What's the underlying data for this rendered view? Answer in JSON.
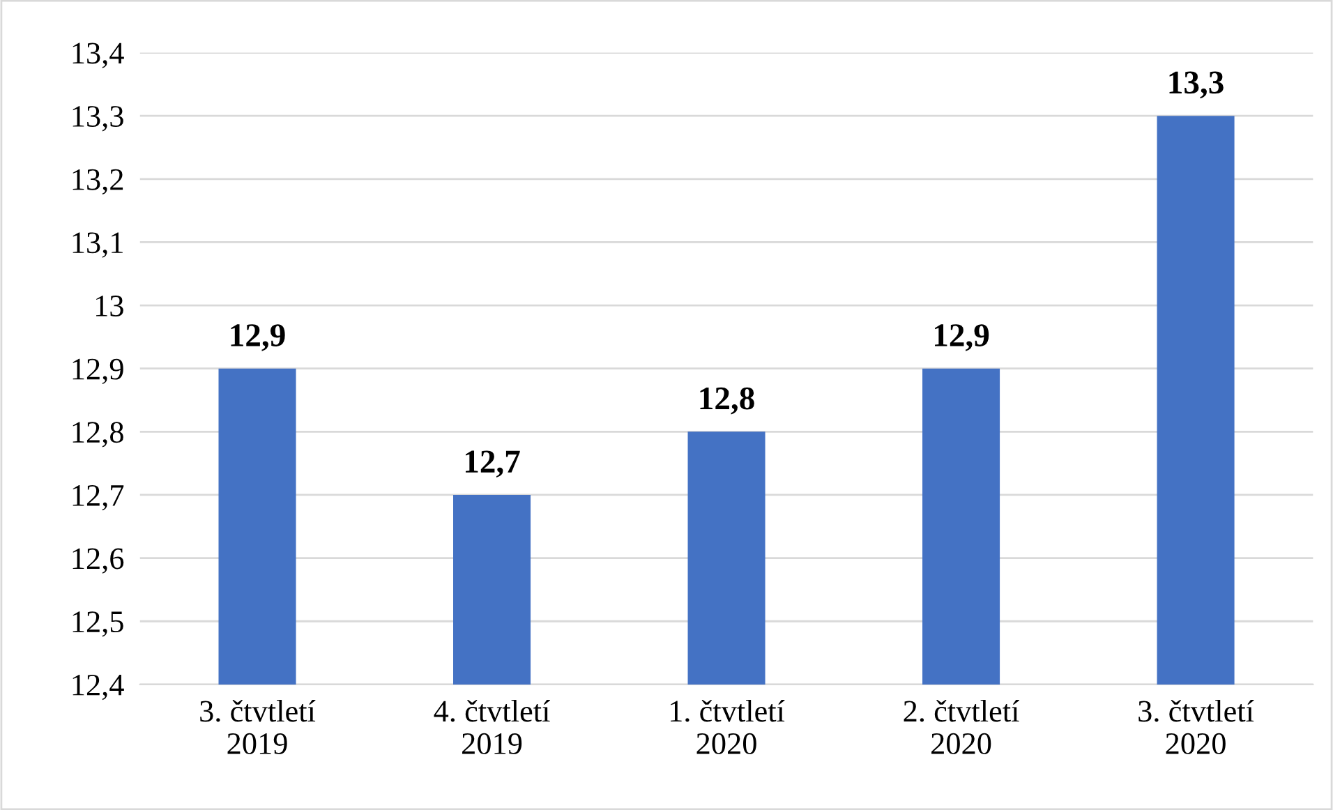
{
  "chart_data": {
    "type": "bar",
    "categories": [
      "3. čtvtletí\n2019",
      "4. čtvtletí\n2019",
      "1. čtvtletí\n2020",
      "2. čtvtletí\n2020",
      "3. čtvtletí\n2020"
    ],
    "values": [
      12.9,
      12.7,
      12.8,
      12.9,
      13.3
    ],
    "value_labels": [
      "12,9",
      "12,7",
      "12,8",
      "12,9",
      "13,3"
    ],
    "color": "#4472c4",
    "ylim": [
      12.4,
      13.4
    ],
    "yticks": [
      {
        "value": 12.4,
        "label": "12,4"
      },
      {
        "value": 12.5,
        "label": "12,5"
      },
      {
        "value": 12.6,
        "label": "12,6"
      },
      {
        "value": 12.7,
        "label": "12,7"
      },
      {
        "value": 12.8,
        "label": "12,8"
      },
      {
        "value": 12.9,
        "label": "12,9"
      },
      13,
      {
        "value": 13.1,
        "label": "13,1"
      },
      {
        "value": 13.2,
        "label": "13,2"
      },
      {
        "value": 13.3,
        "label": "13,3"
      },
      {
        "value": 13.4,
        "label": "13,4"
      }
    ],
    "grid": "y"
  }
}
